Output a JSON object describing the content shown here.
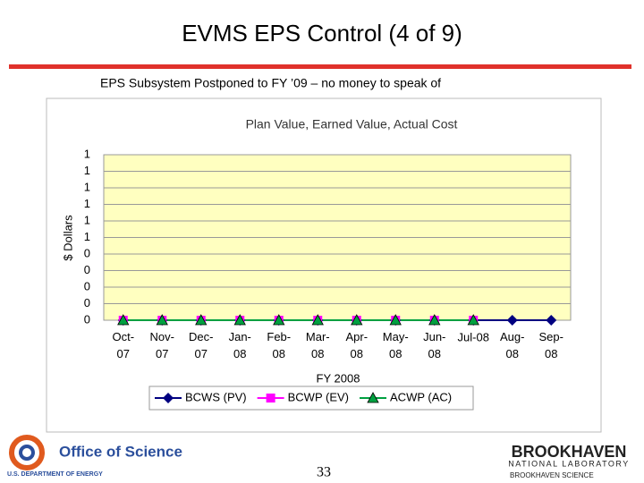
{
  "slide": {
    "title": "EVMS EPS Control (4 of 9)",
    "subtitle": "EPS Subsystem Postponed to FY ’09 – no money to speak of",
    "page_number": "33",
    "logo_left": {
      "name": "Office of Science",
      "sub": "U.S. DEPARTMENT OF ENERGY"
    },
    "logo_right": {
      "name": "BROOKHAVEN",
      "sub": "NATIONAL LABORATORY",
      "footer": "BROOKHAVEN SCIENCE"
    }
  },
  "chart_data": {
    "type": "line",
    "title": "Plan Value, Earned Value, Actual Cost",
    "x_label": "FY 2008",
    "y_label": "$ Dollars",
    "categories": [
      "Oct-07",
      "Nov-07",
      "Dec-07",
      "Jan-08",
      "Feb-08",
      "Mar-08",
      "Apr-08",
      "May-08",
      "Jun-08",
      "Jul-08",
      "Aug-08",
      "Sep-08"
    ],
    "series": [
      {
        "name": "BCWS (PV)",
        "color": "#000080",
        "marker": "diamond",
        "values": [
          0,
          0,
          0,
          0,
          0,
          0,
          0,
          0,
          0,
          0,
          0,
          0
        ]
      },
      {
        "name": "BCWP (EV)",
        "color": "#ff00ff",
        "marker": "square",
        "values": [
          0,
          0,
          0,
          0,
          0,
          0,
          0,
          0,
          0,
          0,
          null,
          null
        ]
      },
      {
        "name": "ACWP (AC)",
        "color": "#00a040",
        "marker": "triangle",
        "values": [
          0,
          0,
          0,
          0,
          0,
          0,
          0,
          0,
          0,
          0,
          null,
          null
        ]
      }
    ],
    "ylim": [
      0,
      1
    ],
    "yticks": [
      0,
      {
        "value": 0.1,
        "label": "0"
      },
      {
        "value": 0.2,
        "label": "0"
      },
      {
        "value": 0.3,
        "label": "0"
      },
      {
        "value": 0.4,
        "label": "0"
      },
      {
        "value": 0.5,
        "label": "1"
      },
      {
        "value": 0.6,
        "label": "1"
      },
      {
        "value": 0.7,
        "label": "1"
      },
      {
        "value": 0.8,
        "label": "1"
      },
      {
        "value": 0.9,
        "label": "1"
      },
      1
    ],
    "grid": true,
    "plot_background": "#ffffc0",
    "legend": "bottom"
  }
}
